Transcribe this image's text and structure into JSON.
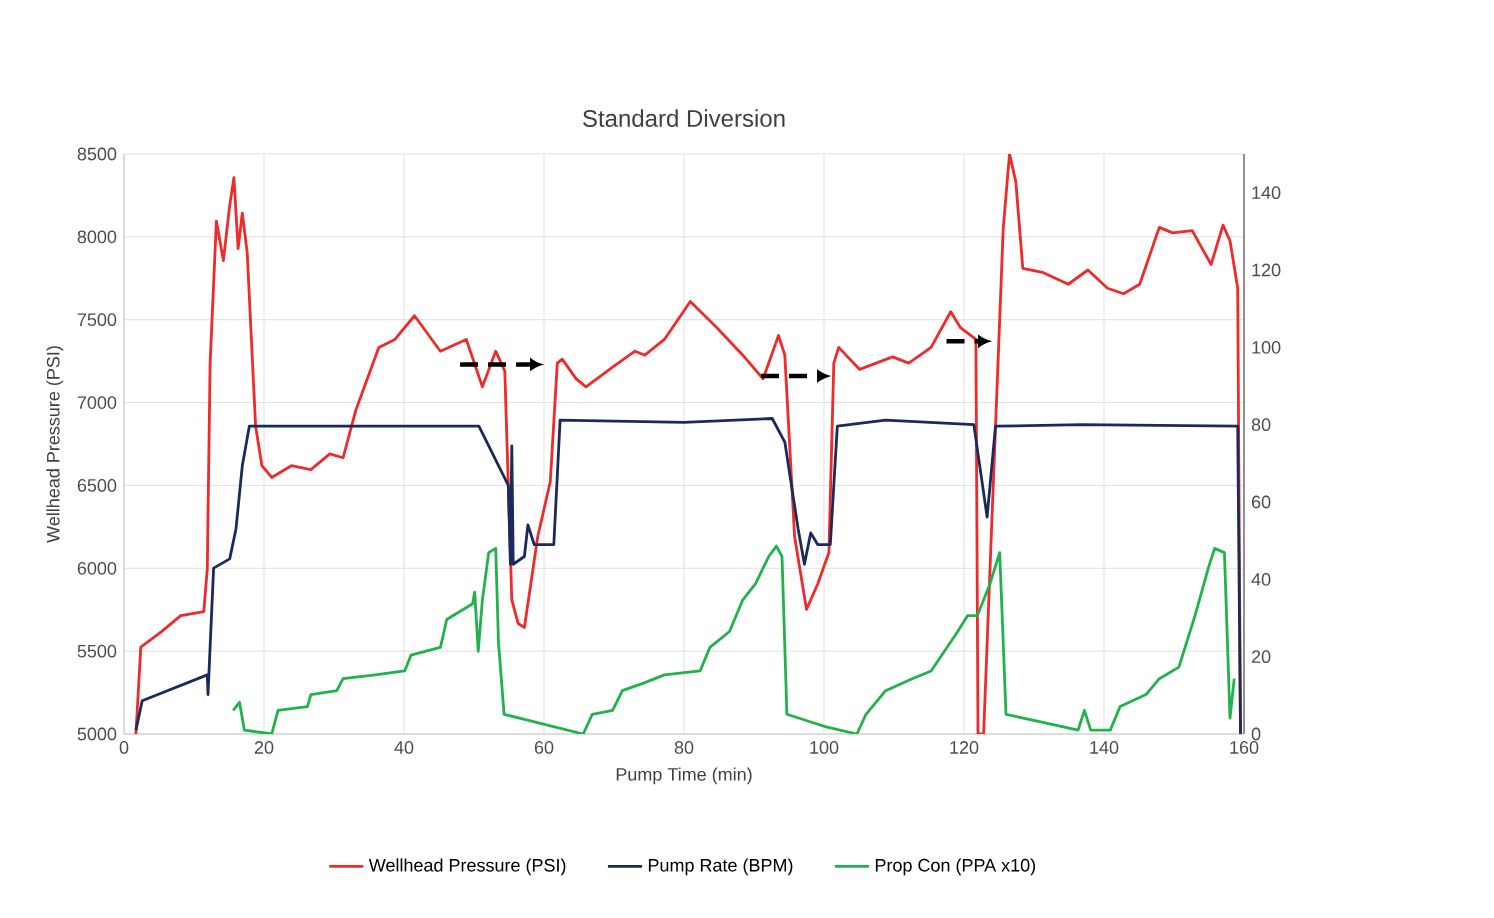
{
  "chart_data": {
    "type": "line",
    "title": "Standard Diversion",
    "xlabel": "Pump Time (min)",
    "ylabel": "Wellhead Pressure (PSI)",
    "xlim": [
      0,
      160
    ],
    "xticks": [
      0,
      20,
      40,
      60,
      80,
      100,
      120,
      140,
      160
    ],
    "ylim": [
      5000,
      8500
    ],
    "yticks": [
      5000,
      5500,
      6000,
      6500,
      7000,
      7500,
      8000,
      8500
    ],
    "y2lim": [
      0,
      150
    ],
    "y2ticks": [
      0,
      20,
      40,
      60,
      80,
      100,
      120,
      140
    ],
    "grid": true,
    "legend": "bottom",
    "series": [
      {
        "name": "Wellhead Pressure (PSI)",
        "color": "#ee2a2a",
        "x": [
          1.7,
          2.4,
          5.4,
          8.1,
          11.4,
          11.9,
          12.3,
          13.2,
          14.2,
          15.1,
          15.7,
          16.3,
          16.9,
          17.6,
          18.8,
          19.7,
          21.1,
          23.9,
          26.7,
          29.4,
          31.3,
          33.1,
          36.4,
          38.7,
          41.5,
          45.2,
          48.9,
          51.2,
          53.1,
          54.4,
          55.4,
          56.3,
          57.2,
          59.1,
          60.9,
          61.9,
          62.6,
          64.6,
          66.0,
          69.8,
          73.0,
          74.4,
          77.2,
          80.9,
          84.7,
          88.4,
          91.3,
          93.5,
          94.4,
          95.8,
          97.5,
          99.1,
          100.7,
          101.4,
          102.1,
          105.1,
          109.8,
          112.1,
          115.3,
          118.1,
          119.5,
          121.7,
          122.0,
          122.8,
          125.6,
          126.5,
          127.4,
          128.4,
          131.2,
          134.9,
          137.7,
          140.5,
          142.8,
          145.1,
          147.9,
          149.8,
          152.6,
          155.3,
          157.0,
          158.0,
          159.1,
          159.5
        ],
        "values": [
          5000,
          5524,
          5619,
          5714,
          5738,
          6000,
          7238,
          8095,
          7857,
          8190,
          8357,
          7929,
          8143,
          7905,
          6857,
          6619,
          6548,
          6619,
          6595,
          6690,
          6667,
          6952,
          7333,
          7381,
          7524,
          7310,
          7381,
          7095,
          7310,
          7190,
          5810,
          5667,
          5643,
          6190,
          6524,
          7238,
          7262,
          7143,
          7095,
          7214,
          7310,
          7286,
          7381,
          7610,
          7452,
          7286,
          7143,
          7405,
          7286,
          6190,
          5752,
          5905,
          6095,
          7238,
          7333,
          7200,
          7276,
          7238,
          7333,
          7548,
          7452,
          7381,
          5000,
          5000,
          8048,
          8500,
          8333,
          7810,
          7786,
          7714,
          7800,
          7690,
          7657,
          7714,
          8057,
          8024,
          8038,
          7833,
          8071,
          7976,
          7690,
          5000
        ]
      },
      {
        "name": "Pump Rate (BPM)",
        "color": "#1b2a5c",
        "axis": "y2",
        "x": [
          1.7,
          2.6,
          11.9,
          12.0,
          12.8,
          15.1,
          16.0,
          16.9,
          17.9,
          30.4,
          50.7,
          52.1,
          54.9,
          55.2,
          55.4,
          55.6,
          57.2,
          57.7,
          58.6,
          61.4,
          62.3,
          80,
          92.6,
          94.4,
          96.3,
          97.2,
          98.1,
          99.1,
          100.9,
          101.9,
          108.8,
          121.4,
          123.3,
          124.5,
          136.7,
          159.1,
          159.5
        ],
        "values": [
          1,
          8.6,
          15.3,
          10.2,
          42.9,
          45.3,
          53.1,
          69.4,
          79.6,
          79.6,
          79.6,
          74.5,
          64.3,
          43.9,
          74.5,
          43.9,
          45.9,
          54.1,
          49,
          49,
          81.2,
          80.6,
          81.6,
          75.5,
          53.1,
          43.9,
          52,
          49,
          49,
          79.6,
          81.2,
          80,
          56.1,
          79.6,
          80,
          79.6,
          0
        ]
      },
      {
        "name": "Prop Con (PPA x10)",
        "color": "#22b24c",
        "axis": "y2",
        "x": [
          15.6,
          16.5,
          17.2,
          21.1,
          22.0,
          26.2,
          26.7,
          30.4,
          31.3,
          35.9,
          40.1,
          41.0,
          45.2,
          46.1,
          49.8,
          50.1,
          50.6,
          51.2,
          52.1,
          53.1,
          53.5,
          54.3,
          65.6,
          66.9,
          69.8,
          71.2,
          74.4,
          77.2,
          82.3,
          83.7,
          86.5,
          88.4,
          90.2,
          92.1,
          93.2,
          94.0,
          94.7,
          100,
          104.7,
          106.0,
          108.8,
          112.6,
          115.3,
          117.2,
          119.1,
          120.5,
          121.9,
          123.7,
          125.1,
          126.0,
          136.3,
          137.2,
          138.1,
          140.9,
          142.3,
          146.0,
          147.9,
          150.7,
          153.0,
          154.9,
          155.8,
          157.2,
          158.0,
          158.6
        ],
        "values": [
          6.1,
          8.2,
          1,
          0,
          6.1,
          7.1,
          10.2,
          11.2,
          14.3,
          15.3,
          16.3,
          20.4,
          22.4,
          29.6,
          33.7,
          36.7,
          21.4,
          34.7,
          46.9,
          48,
          23.5,
          5.1,
          0,
          5.1,
          6.1,
          11.2,
          13.3,
          15.3,
          16.3,
          22.4,
          26.5,
          34.7,
          38.8,
          45.9,
          48.6,
          45.9,
          5.1,
          2,
          0,
          5.1,
          11.2,
          14.3,
          16.3,
          21.4,
          26.5,
          30.6,
          30.6,
          38.8,
          46.9,
          5.1,
          1,
          6.1,
          1,
          1,
          7.1,
          10.2,
          14.3,
          17.3,
          30.6,
          42.9,
          48,
          46.9,
          4.1,
          14.3
        ]
      }
    ]
  }
}
